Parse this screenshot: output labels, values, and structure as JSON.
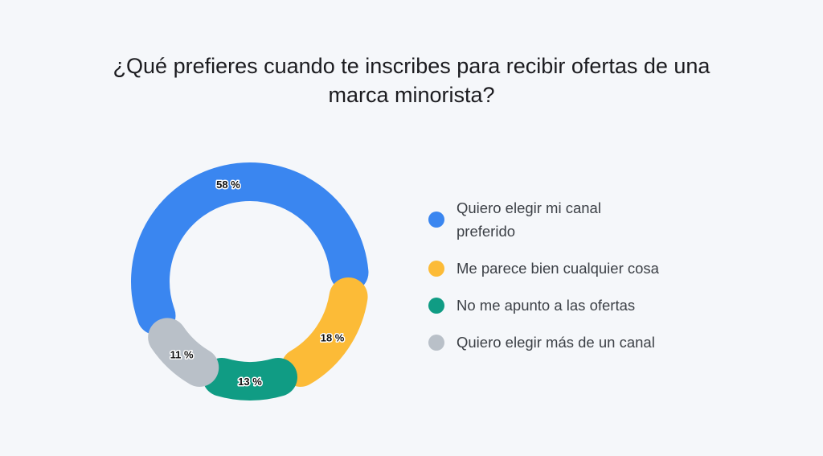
{
  "chart_data": {
    "type": "donut",
    "title_lines": [
      "¿Qué prefieres cuando te inscribes para recibir ofertas de una",
      "marca minorista?"
    ],
    "unit": "%",
    "series": [
      {
        "name": "Quiero elegir mi canal preferido",
        "value": 58,
        "label": "58 %",
        "color": "#3a86f0"
      },
      {
        "name": "Me parece bien cualquier cosa",
        "value": 18,
        "label": "18 %",
        "color": "#fcbb37"
      },
      {
        "name": "No me apunto a las ofertas",
        "value": 13,
        "label": "13 %",
        "color": "#109c84"
      },
      {
        "name": "Quiero elegir más de un canal",
        "value": 11,
        "label": "11 %",
        "color": "#b9c0c8"
      }
    ],
    "legend_position": "right"
  }
}
